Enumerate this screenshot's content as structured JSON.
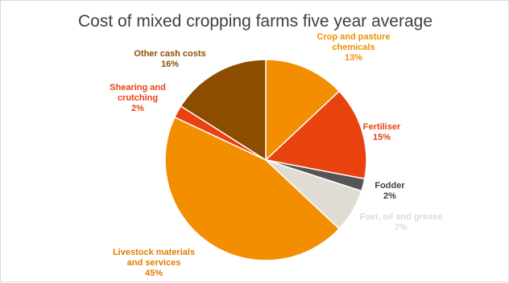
{
  "chart_data": {
    "type": "pie",
    "title": "Cost of mixed cropping farms five year average",
    "slices": [
      {
        "name": "Crop and pasture chemicals",
        "label_lines": [
          "Crop and pasture",
          "chemicals"
        ],
        "value": 13,
        "pct_label": "13%",
        "color": "#f28e00",
        "label_color": "#f28e00"
      },
      {
        "name": "Fertiliser",
        "label_lines": [
          "Fertiliser"
        ],
        "value": 15,
        "pct_label": "15%",
        "color": "#e8420f",
        "label_color": "#e8420f"
      },
      {
        "name": "Fodder",
        "label_lines": [
          "Fodder"
        ],
        "value": 2,
        "pct_label": "2%",
        "color": "#555555",
        "label_color": "#404040"
      },
      {
        "name": "Fuel, oil and grease",
        "label_lines": [
          "Fuel, oil and grease"
        ],
        "value": 7,
        "pct_label": "7%",
        "color": "#e0dbd3",
        "label_color": "#e0dbd3"
      },
      {
        "name": "Livestock materials and services",
        "label_lines": [
          "Livestock materials",
          "and services"
        ],
        "value": 45,
        "pct_label": "45%",
        "color": "#f28e00",
        "label_color": "#e07d00"
      },
      {
        "name": "Shearing and crutching",
        "label_lines": [
          "Shearing and",
          "crutching"
        ],
        "value": 2,
        "pct_label": "2%",
        "color": "#e8420f",
        "label_color": "#e8420f"
      },
      {
        "name": "Other cash costs",
        "label_lines": [
          "Other cash costs"
        ],
        "value": 16,
        "pct_label": "16%",
        "color": "#8c4d00",
        "label_color": "#8c5000"
      }
    ],
    "start_angle_deg": 0,
    "direction": "clockwise",
    "legend": "none"
  }
}
